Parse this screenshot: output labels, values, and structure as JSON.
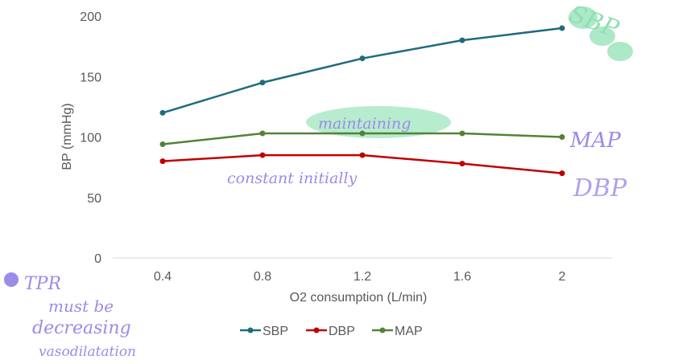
{
  "chart_data": {
    "type": "line",
    "title": "",
    "xlabel": "O2 consumption (L/min)",
    "ylabel": "BP (mmHg)",
    "categories": [
      "0.4",
      "0.8",
      "1.2",
      "1.6",
      "2"
    ],
    "ylim": [
      0,
      200
    ],
    "yticks": [
      "0",
      "50",
      "100",
      "150",
      "200"
    ],
    "grid": false,
    "legend": "bottom",
    "series": [
      {
        "name": "SBP",
        "color": "#1f6b7e",
        "values": [
          120,
          145,
          165,
          180,
          190
        ]
      },
      {
        "name": "DBP",
        "color": "#c00000",
        "values": [
          80,
          85,
          85,
          78,
          70
        ]
      },
      {
        "name": "MAP",
        "color": "#548235",
        "values": [
          94,
          103,
          103,
          103,
          100
        ]
      }
    ]
  },
  "annotations": {
    "sbp": "SBP",
    "maintaining": "maintaining",
    "map": "MAP",
    "constant_initially": "constant initially",
    "dbp": "DBP",
    "tpr_line1": "TPR",
    "tpr_line2": "must be",
    "tpr_line3": "decreasing",
    "tpr_line4": "vasodilatation"
  },
  "colors": {
    "ink": "#9b8ce8",
    "highlight": "#8fe0b4",
    "axis_text": "#595959"
  }
}
